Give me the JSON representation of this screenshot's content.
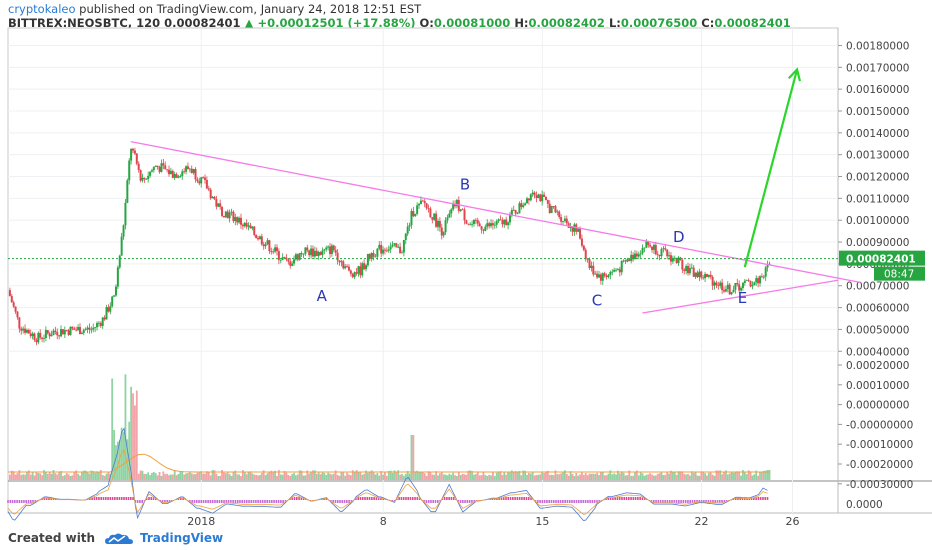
{
  "header": {
    "author": "cryptokaleo",
    "published": "published on TradingView.com, January 24, 2018 12:51 EST",
    "symbol": "BITTREX:NEOSBTC, 120",
    "last": "0.00082401",
    "change": "+0.00012501 (+17.88%)",
    "o_label": "O:",
    "o_value": "0.00081000",
    "h_label": "H:",
    "h_value": "0.00082402",
    "l_label": "L:",
    "l_value": "0.00076500",
    "c_label": "C:",
    "c_value": "0.00082401"
  },
  "footer": {
    "created_with": "Created with",
    "brand": "TradingView"
  },
  "colors": {
    "up": "#26a541",
    "down": "#e0454f",
    "trend": "#f77ae8",
    "arrow": "#2ad62a",
    "price_tag": "#26a541",
    "volume_ma": "#f0a040"
  },
  "chart_data": {
    "type": "candlestick",
    "price_axis": {
      "ticks": [
        0.0004,
        0.0005,
        0.0006,
        0.0007,
        0.0008,
        0.0009,
        0.001,
        0.0011,
        0.0012,
        0.0013,
        0.0014,
        0.0015,
        0.0016,
        0.0017,
        0.0018
      ],
      "tick_labels": [
        "0.00040000",
        "0.00050000",
        "0.00060000",
        "0.00070000",
        "0.00080000",
        "0.00090000",
        "0.00100000",
        "0.00110000",
        "0.00120000",
        "0.00130000",
        "0.00140000",
        "0.00150000",
        "0.00160000",
        "0.00170000",
        "0.00180000"
      ],
      "range": [
        0.00036,
        0.00188
      ]
    },
    "volume_axis": {
      "tick_labels": [
        "0.00020000",
        "0.00010000",
        "0.00000000",
        "-0.00000000",
        "-0.00010000",
        "-0.00020000",
        "-0.00030000"
      ]
    },
    "oscillator_axis": {
      "tick_labels": [
        "0.0000"
      ]
    },
    "time_axis": {
      "day_span": [
        -8.5,
        28
      ],
      "ticks": [
        {
          "day": 0,
          "label": "2018"
        },
        {
          "day": 8,
          "label": "8"
        },
        {
          "day": 15,
          "label": "15"
        },
        {
          "day": 22,
          "label": "22"
        },
        {
          "day": 26,
          "label": "26"
        }
      ]
    },
    "last_price_label": "0.00082401",
    "countdown_label": "08:47",
    "price_path": [
      [
        -8.5,
        0.00068
      ],
      [
        -8.0,
        0.00052
      ],
      [
        -7.2,
        0.00046
      ],
      [
        -6.5,
        0.00049
      ],
      [
        -5.5,
        0.0005
      ],
      [
        -4.8,
        0.0005
      ],
      [
        -4.3,
        0.00055
      ],
      [
        -3.8,
        0.00066
      ],
      [
        -3.4,
        0.001
      ],
      [
        -3.1,
        0.00134
      ],
      [
        -2.6,
        0.00118
      ],
      [
        -2.0,
        0.00125
      ],
      [
        -1.2,
        0.00121
      ],
      [
        -0.5,
        0.00124
      ],
      [
        0.2,
        0.00116
      ],
      [
        0.8,
        0.00105
      ],
      [
        1.5,
        0.00101
      ],
      [
        2.2,
        0.00095
      ],
      [
        3.0,
        0.00088
      ],
      [
        3.8,
        0.0008
      ],
      [
        4.5,
        0.00086
      ],
      [
        5.2,
        0.00085
      ],
      [
        5.8,
        0.00087
      ],
      [
        6.5,
        0.00076
      ],
      [
        7.0,
        0.00077
      ],
      [
        7.5,
        0.00085
      ],
      [
        8.2,
        0.00088
      ],
      [
        8.8,
        0.00086
      ],
      [
        9.3,
        0.00104
      ],
      [
        9.8,
        0.00108
      ],
      [
        10.6,
        0.00095
      ],
      [
        11.2,
        0.00108
      ],
      [
        11.8,
        0.00098
      ],
      [
        12.5,
        0.00097
      ],
      [
        13.3,
        0.00099
      ],
      [
        14.0,
        0.00106
      ],
      [
        14.6,
        0.00114
      ],
      [
        15.3,
        0.00106
      ],
      [
        16.0,
        0.001
      ],
      [
        16.6,
        0.00094
      ],
      [
        17.1,
        0.00078
      ],
      [
        17.6,
        0.00074
      ],
      [
        18.4,
        0.00078
      ],
      [
        19.0,
        0.00084
      ],
      [
        19.6,
        0.00089
      ],
      [
        20.3,
        0.00085
      ],
      [
        21.0,
        0.00081
      ],
      [
        21.6,
        0.00076
      ],
      [
        22.4,
        0.00073
      ],
      [
        23.2,
        0.00068
      ],
      [
        24.0,
        0.00071
      ],
      [
        24.4,
        0.00072
      ],
      [
        24.8,
        0.00076
      ],
      [
        25.0,
        0.00082
      ]
    ],
    "annotations": {
      "labels": [
        {
          "text": "A",
          "day": 5.3,
          "price": 0.00063
        },
        {
          "text": "B",
          "day": 11.6,
          "price": 0.00114
        },
        {
          "text": "C",
          "day": 17.4,
          "price": 0.00061
        },
        {
          "text": "D",
          "day": 21.0,
          "price": 0.0009
        },
        {
          "text": "E",
          "day": 23.8,
          "price": 0.00062
        }
      ],
      "upper_trendline": [
        [
          -3.1,
          0.00136
        ],
        [
          29.0,
          0.000715
        ]
      ],
      "lower_trendline": [
        [
          19.4,
          0.000575
        ],
        [
          28.0,
          0.000725
        ]
      ],
      "breakout_arrow": [
        [
          23.9,
          0.000785
        ],
        [
          26.2,
          0.00169
        ]
      ]
    }
  }
}
